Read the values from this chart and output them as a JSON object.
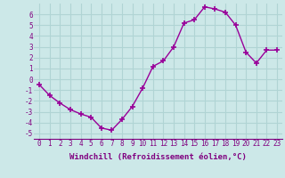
{
  "x": [
    0,
    1,
    2,
    3,
    4,
    5,
    6,
    7,
    8,
    9,
    10,
    11,
    12,
    13,
    14,
    15,
    16,
    17,
    18,
    19,
    20,
    21,
    22,
    23
  ],
  "y": [
    -0.5,
    -1.5,
    -2.2,
    -2.8,
    -3.2,
    -3.5,
    -4.5,
    -4.7,
    -3.7,
    -2.5,
    -0.8,
    1.2,
    1.7,
    3.0,
    5.2,
    5.5,
    6.7,
    6.5,
    6.2,
    5.0,
    2.5,
    1.5,
    2.7,
    2.7
  ],
  "line_color": "#990099",
  "marker": "+",
  "marker_size": 4,
  "background_color": "#cce8e8",
  "grid_color": "#b0d4d4",
  "xlabel": "Windchill (Refroidissement éolien,°C)",
  "ylabel": "",
  "xlim": [
    -0.5,
    23.5
  ],
  "ylim": [
    -5.5,
    7.0
  ],
  "yticks": [
    -5,
    -4,
    -3,
    -2,
    -1,
    0,
    1,
    2,
    3,
    4,
    5,
    6
  ],
  "xticks": [
    0,
    1,
    2,
    3,
    4,
    5,
    6,
    7,
    8,
    9,
    10,
    11,
    12,
    13,
    14,
    15,
    16,
    17,
    18,
    19,
    20,
    21,
    22,
    23
  ],
  "tick_label_color": "#800080",
  "tick_label_fontsize": 5.5,
  "xlabel_fontsize": 6.5,
  "line_width": 1.0
}
